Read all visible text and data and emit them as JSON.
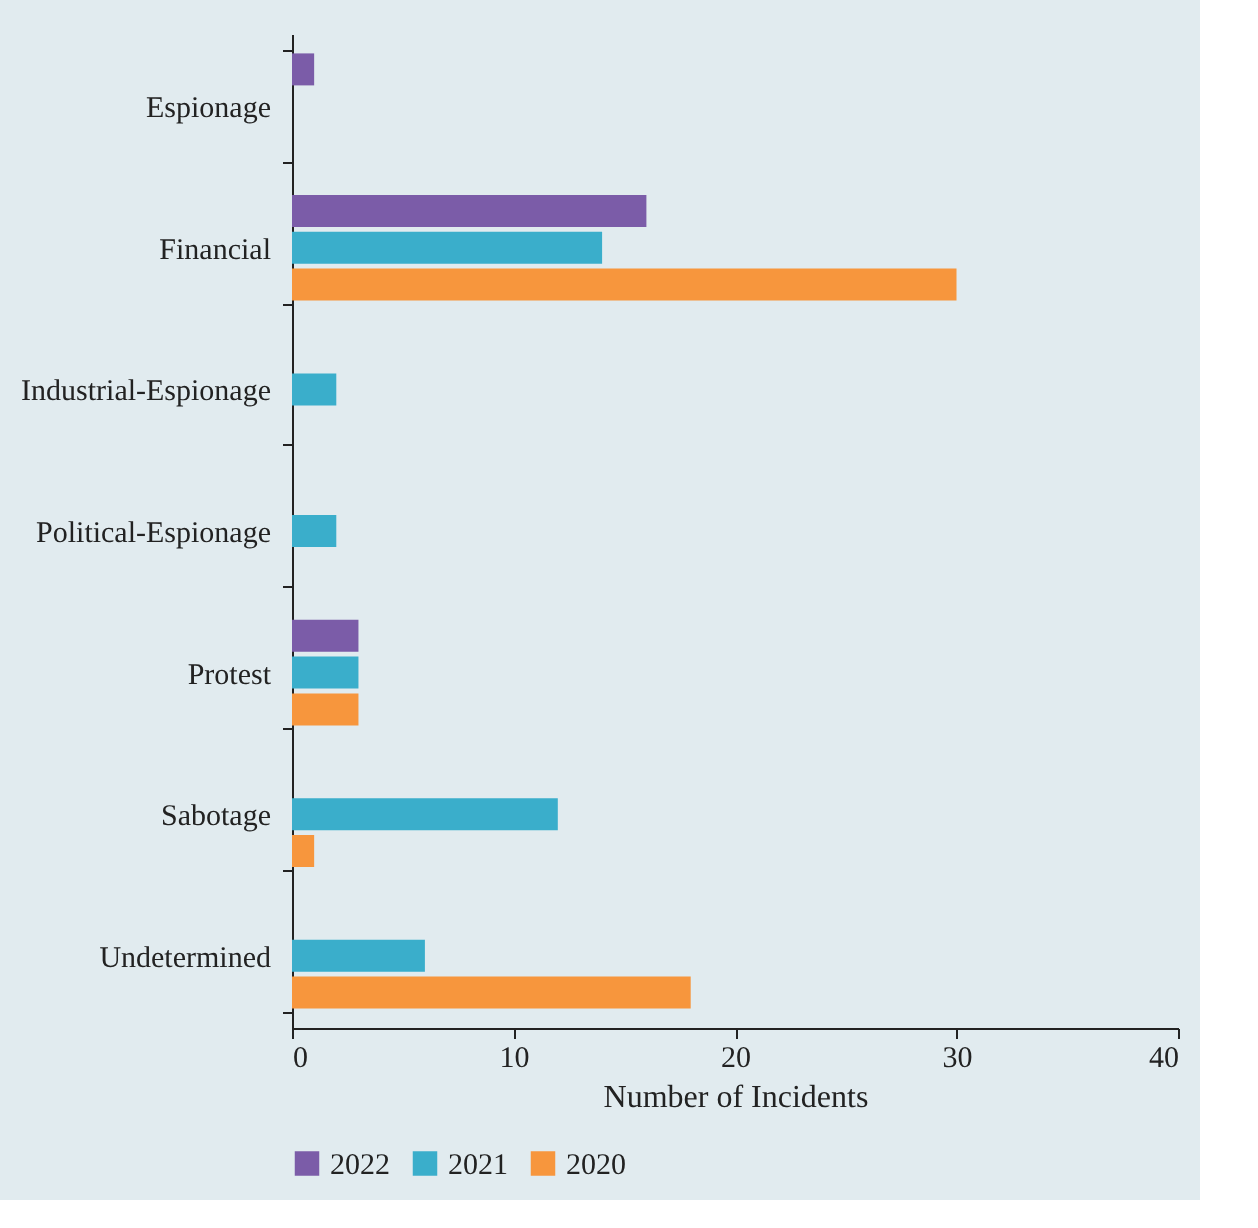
{
  "chart_data": {
    "type": "bar",
    "orientation": "horizontal",
    "categories": [
      "Espionage",
      "Financial",
      "Industrial-Espionage",
      "Political-Espionage",
      "Protest",
      "Sabotage",
      "Undetermined"
    ],
    "series": [
      {
        "name": "2022",
        "color": "#7b5ca8",
        "values": [
          1,
          16,
          null,
          null,
          3,
          null,
          null
        ]
      },
      {
        "name": "2021",
        "color": "#3aaecb",
        "values": [
          null,
          14,
          2,
          2,
          3,
          12,
          6
        ]
      },
      {
        "name": "2020",
        "color": "#f7963d",
        "values": [
          null,
          30,
          null,
          null,
          3,
          1,
          18
        ]
      }
    ],
    "xlabel": "Number of Incidents",
    "xlim": [
      0,
      40
    ],
    "xticks": [
      0,
      10,
      20,
      30,
      40
    ],
    "legend": "bottom",
    "grid": false
  }
}
